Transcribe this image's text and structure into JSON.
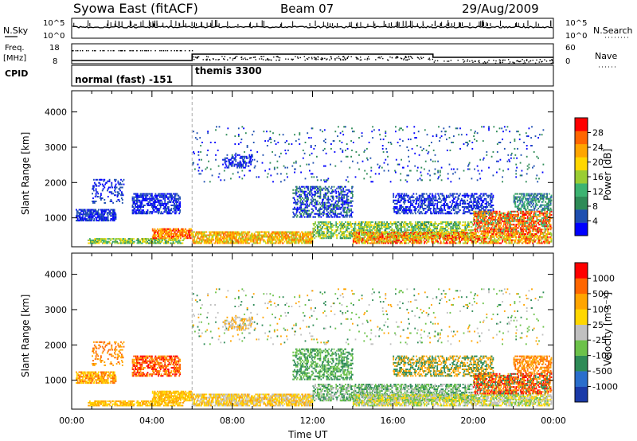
{
  "header": {
    "title": "Syowa East (fitACF)",
    "beam": "Beam 07",
    "date": "29/Aug/2009"
  },
  "strip": {
    "nsky_label": "N.Sky",
    "nsearch_label": "N.Search",
    "nsky_ticks": [
      "10^5",
      "10^0"
    ],
    "nsearch_ticks": [
      "10^5",
      "10^0"
    ],
    "freq_label_1": "Freq.",
    "freq_label_2": "[MHz]",
    "freq_ticks": [
      "18",
      "8"
    ],
    "nave_label": "Nave",
    "nave_ticks": [
      "60",
      "0"
    ],
    "cpid_label": "CPID",
    "cpid_modes": [
      {
        "name": "normal (fast) -151",
        "start_hour": 0,
        "end_hour": 6
      },
      {
        "name": "themis 3300",
        "start_hour": 6,
        "end_hour": 24
      }
    ]
  },
  "colors": {
    "power": [
      "#0000ff",
      "#1e4fb0",
      "#2e8b57",
      "#3cb371",
      "#9acd32",
      "#ffd700",
      "#ffa500",
      "#ff6600",
      "#ff0000"
    ],
    "velocity": [
      "#1a3aa8",
      "#2a6ecc",
      "#2e8b57",
      "#6cc24a",
      "#c0c0c0",
      "#ffd700",
      "#ffa500",
      "#ff6600",
      "#ff0000"
    ]
  },
  "chart_data": [
    {
      "type": "heatmap",
      "name": "power",
      "ylabel": "Slant Range [km]",
      "xlabel": "",
      "x_range_hours": [
        0,
        24
      ],
      "ylim": [
        180,
        4600
      ],
      "yticks": [
        "1000",
        "2000",
        "3000",
        "4000"
      ],
      "colorbar_label": "Power [dB]",
      "colorbar_ticks": [
        "4",
        "8",
        "12",
        "16",
        "20",
        "24",
        "28"
      ]
    },
    {
      "type": "heatmap",
      "name": "velocity",
      "ylabel": "Slant Range [km]",
      "xlabel": "Time UT",
      "x_range_hours": [
        0,
        24
      ],
      "xticks": [
        "00:00",
        "04:00",
        "08:00",
        "12:00",
        "16:00",
        "20:00",
        "00:00"
      ],
      "ylim": [
        180,
        4600
      ],
      "yticks": [
        "1000",
        "2000",
        "3000",
        "4000"
      ],
      "colorbar_label": "Velocity [m s⁻¹]",
      "colorbar_ticks": [
        "-1000",
        "-500",
        "-100",
        "-25",
        "25",
        "100",
        "500",
        "1000"
      ]
    }
  ]
}
